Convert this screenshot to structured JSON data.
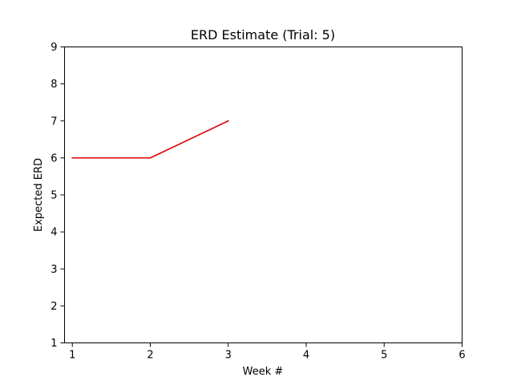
{
  "chart_data": {
    "type": "line",
    "title": "ERD Estimate (Trial: 5)",
    "xlabel": "Week #",
    "ylabel": "Expected ERD",
    "xlim": [
      0.9,
      6.0
    ],
    "ylim": [
      1,
      9
    ],
    "xticks": [
      "1",
      "2",
      "3",
      "4",
      "5",
      "6"
    ],
    "yticks": [
      "1",
      "2",
      "3",
      "4",
      "5",
      "6",
      "7",
      "8",
      "9"
    ],
    "grid": false,
    "series": [
      {
        "color": "#dd0000",
        "x": [
          1,
          2,
          3
        ],
        "y": [
          6,
          6,
          7
        ]
      }
    ]
  }
}
